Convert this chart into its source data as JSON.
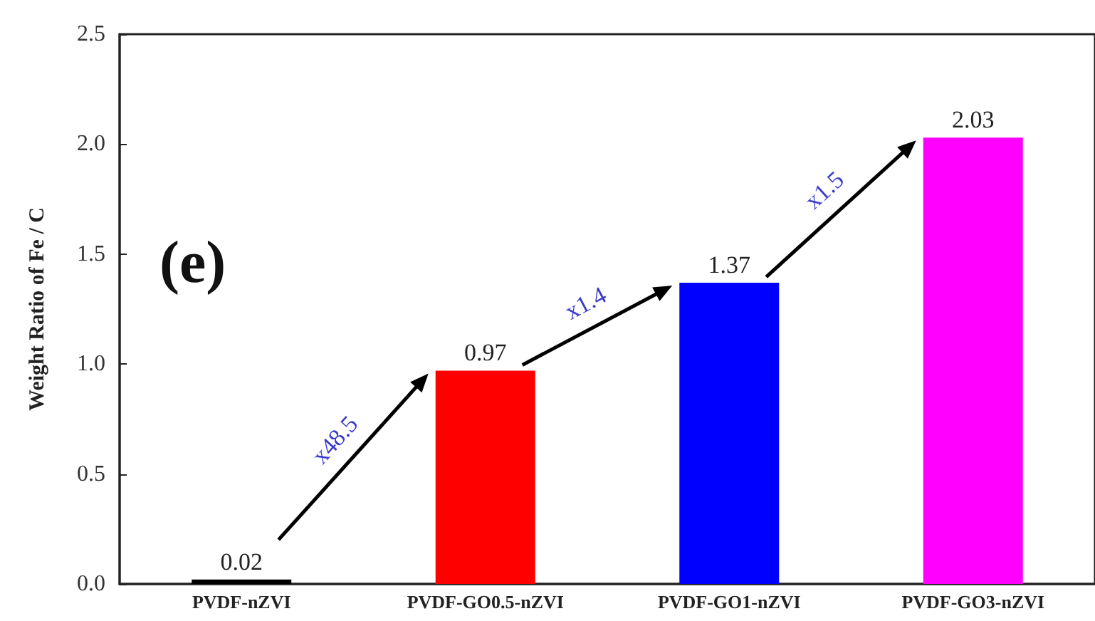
{
  "chart_data": {
    "type": "bar",
    "ylabel": "Weight Ratio of Fe / C",
    "categories": [
      "PVDF-nZVI",
      "PVDF-GO0.5-nZVI",
      "PVDF-GO1-nZVI",
      "PVDF-GO3-nZVI"
    ],
    "values": [
      0.02,
      0.97,
      1.37,
      2.03
    ],
    "colors": [
      "#000000",
      "#ff0000",
      "#0000ff",
      "#ff00ff"
    ],
    "ylim": [
      0,
      2.5
    ],
    "yticks": [
      {
        "value": 0,
        "label": "0.0"
      },
      0.5,
      {
        "value": 1,
        "label": "1.0"
      },
      1.5,
      {
        "value": 2,
        "label": "2.0"
      },
      2.5
    ],
    "data_labels": true,
    "grid": false,
    "annotations": [
      "(e)",
      "x48.5",
      "x1.4",
      "x1.5"
    ]
  }
}
